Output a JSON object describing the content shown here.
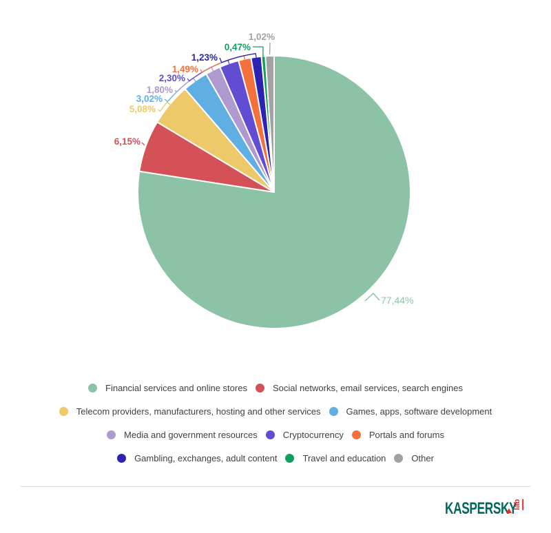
{
  "chart_data": {
    "type": "pie",
    "title": "",
    "unit": "%",
    "decimal_separator": ",",
    "start_angle_deg": 0,
    "direction": "clockwise",
    "legend_position": "bottom",
    "slices": [
      {
        "label": "Financial services and online stores",
        "value": 77.44,
        "display": "77,44%",
        "color": "#8CC3A6"
      },
      {
        "label": "Social networks, email services, search engines",
        "value": 6.15,
        "display": "6,15%",
        "color": "#D45257"
      },
      {
        "label": "Telecom providers, manufacturers, hosting and other services",
        "value": 5.08,
        "display": "5,08%",
        "color": "#EDC96A"
      },
      {
        "label": "Games, apps, software development",
        "value": 3.02,
        "display": "3,02%",
        "color": "#5FAFE3"
      },
      {
        "label": "Media and government resources",
        "value": 1.8,
        "display": "1,80%",
        "color": "#B099CE"
      },
      {
        "label": "Cryptocurrency",
        "value": 2.3,
        "display": "2,30%",
        "color": "#624CD1"
      },
      {
        "label": "Portals and forums",
        "value": 1.49,
        "display": "1,49%",
        "color": "#F4703D"
      },
      {
        "label": "Gambling, exchanges, adult content",
        "value": 1.23,
        "display": "1,23%",
        "color": "#2C23B2"
      },
      {
        "label": "Travel and education",
        "value": 0.47,
        "display": "0,47%",
        "color": "#12A05F"
      },
      {
        "label": "Other",
        "value": 1.02,
        "display": "1,02%",
        "color": "#A2A2A2"
      }
    ],
    "legend_rows": [
      [
        0,
        1
      ],
      [
        2,
        3
      ],
      [
        4,
        5,
        6
      ],
      [
        7,
        8,
        9
      ]
    ]
  },
  "footer": {
    "brand": "KASPERSKY",
    "brand_suffix": "lab"
  }
}
